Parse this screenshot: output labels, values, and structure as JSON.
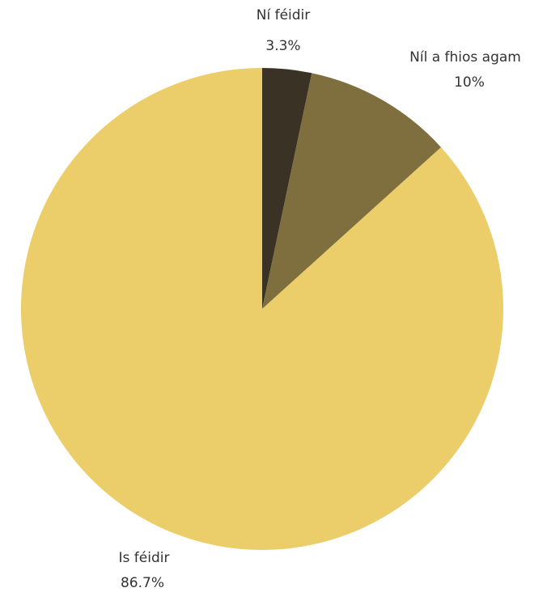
{
  "chart_data": {
    "type": "pie",
    "start_angle_deg": 0,
    "direction": "clockwise",
    "slices": [
      {
        "label": "Ní féidir",
        "value": 3.3,
        "value_label": "3.3%",
        "color": "#3a3325"
      },
      {
        "label": "Níl a fhios agam",
        "value": 10,
        "value_label": "10%",
        "color": "#7f6f3f"
      },
      {
        "label": "Is féidir",
        "value": 86.7,
        "value_label": "86.7%",
        "color": "#ebcd6a"
      }
    ]
  }
}
